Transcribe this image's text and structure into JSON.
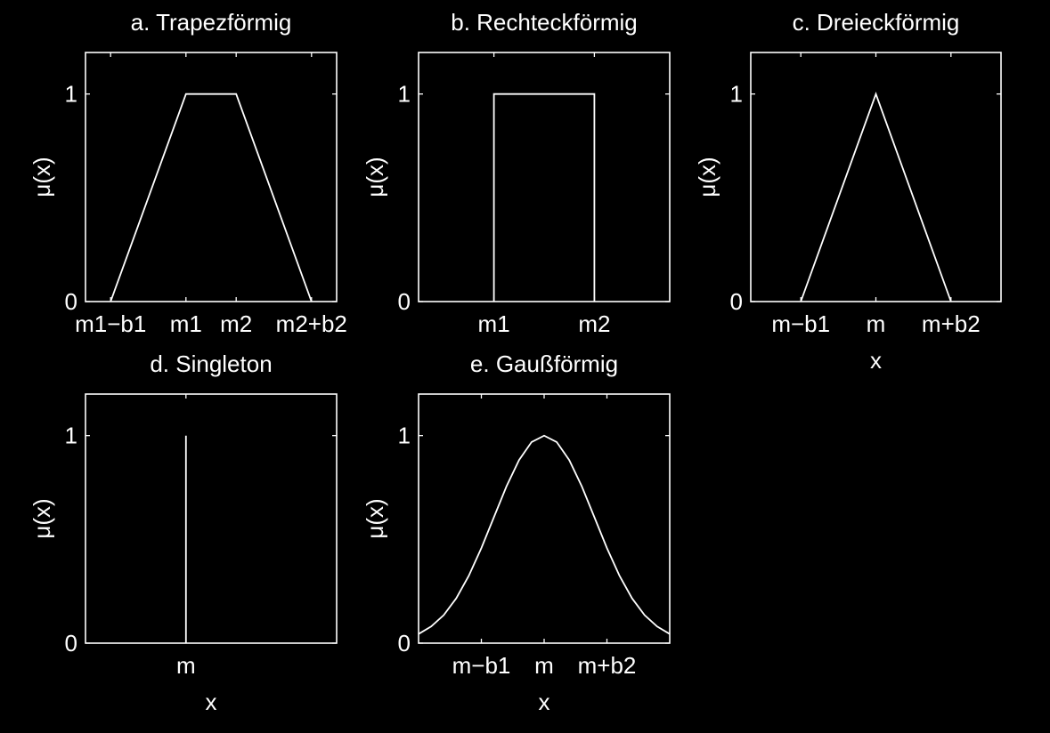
{
  "figure": {
    "background": "#000000",
    "foreground": "#ffffff"
  },
  "chart_data": [
    {
      "id": "a",
      "type": "line",
      "title": "a. Trapezförmig",
      "xlabel": "",
      "ylabel": "μ(x)",
      "xlim": [
        -0.5,
        4.5
      ],
      "ylim": [
        0,
        1.2
      ],
      "xticks": [
        {
          "value": 0,
          "label": "m1−b1"
        },
        {
          "value": 1.5,
          "label": "m1"
        },
        {
          "value": 2.5,
          "label": "m2"
        },
        {
          "value": 4,
          "label": "m2+b2"
        }
      ],
      "yticks": [
        {
          "value": 0,
          "label": "0"
        },
        {
          "value": 1,
          "label": "1"
        }
      ],
      "series": [
        {
          "x": [
            0,
            1.5,
            2.5,
            4
          ],
          "y": [
            0,
            1,
            1,
            0
          ]
        }
      ]
    },
    {
      "id": "b",
      "type": "line",
      "title": "b. Rechteckförmig",
      "xlabel": "",
      "ylabel": "μ(x)",
      "xlim": [
        0,
        5
      ],
      "ylim": [
        0,
        1.2
      ],
      "xticks": [
        {
          "value": 1.5,
          "label": "m1"
        },
        {
          "value": 3.5,
          "label": "m2"
        }
      ],
      "yticks": [
        {
          "value": 0,
          "label": "0"
        },
        {
          "value": 1,
          "label": "1"
        }
      ],
      "series": [
        {
          "x": [
            1.5,
            1.5,
            3.5,
            3.5
          ],
          "y": [
            0,
            1,
            1,
            0
          ]
        }
      ]
    },
    {
      "id": "c",
      "type": "line",
      "title": "c. Dreieckförmig",
      "xlabel": "x",
      "ylabel": "μ(x)",
      "xlim": [
        -2.5,
        2.5
      ],
      "ylim": [
        0,
        1.2
      ],
      "xticks": [
        {
          "value": -1.5,
          "label": "m−b1"
        },
        {
          "value": 0,
          "label": "m"
        },
        {
          "value": 1.5,
          "label": "m+b2"
        }
      ],
      "yticks": [
        {
          "value": 0,
          "label": "0"
        },
        {
          "value": 1,
          "label": "1"
        }
      ],
      "series": [
        {
          "x": [
            -1.5,
            0,
            1.5
          ],
          "y": [
            0,
            1,
            0
          ]
        }
      ]
    },
    {
      "id": "d",
      "type": "line",
      "title": "d. Singleton",
      "xlabel": "x",
      "ylabel": "μ(x)",
      "xlim": [
        -2,
        3
      ],
      "ylim": [
        0,
        1.2
      ],
      "xticks": [
        {
          "value": 0,
          "label": "m"
        }
      ],
      "yticks": [
        {
          "value": 0,
          "label": "0"
        },
        {
          "value": 1,
          "label": "1"
        }
      ],
      "series": [
        {
          "x": [
            0,
            0
          ],
          "y": [
            0,
            1
          ]
        }
      ]
    },
    {
      "id": "e",
      "type": "line",
      "title": "e. Gaußförmig",
      "xlabel": "x",
      "ylabel": "μ(x)",
      "xlim": [
        -2.5,
        2.5
      ],
      "ylim": [
        0,
        1.2
      ],
      "xticks": [
        {
          "value": -1.25,
          "label": "m−b1"
        },
        {
          "value": 0,
          "label": "m"
        },
        {
          "value": 1.25,
          "label": "m+b2"
        }
      ],
      "yticks": [
        {
          "value": 0,
          "label": "0"
        },
        {
          "value": 1,
          "label": "1"
        }
      ],
      "series": [
        {
          "x": [
            -2.5,
            -2.25,
            -2.0,
            -1.75,
            -1.5,
            -1.25,
            -1.0,
            -0.75,
            -0.5,
            -0.25,
            0,
            0.25,
            0.5,
            0.75,
            1.0,
            1.25,
            1.5,
            1.75,
            2.0,
            2.25,
            2.5
          ],
          "y": [
            0.044,
            0.08,
            0.135,
            0.216,
            0.325,
            0.458,
            0.607,
            0.755,
            0.882,
            0.969,
            1.0,
            0.969,
            0.882,
            0.755,
            0.607,
            0.458,
            0.325,
            0.216,
            0.135,
            0.08,
            0.044
          ]
        }
      ]
    }
  ]
}
